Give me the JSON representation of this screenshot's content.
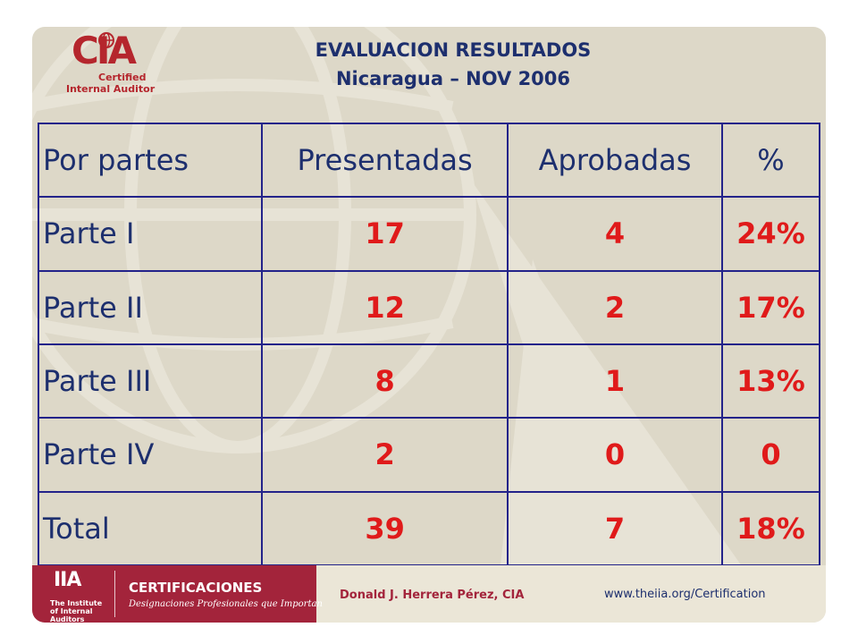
{
  "logo": {
    "brand": "CIA",
    "line1": "Certified",
    "line2": "Internal Auditor"
  },
  "title": {
    "line1": "EVALUACION RESULTADOS",
    "line2": "Nicaragua – NOV 2006"
  },
  "table": {
    "headers": [
      "Por partes",
      "Presentadas",
      "Aprobadas",
      "%"
    ],
    "rows": [
      {
        "label": "Parte I",
        "presentadas": "17",
        "aprobadas": "4",
        "pct": "24%"
      },
      {
        "label": "Parte II",
        "presentadas": "12",
        "aprobadas": "2",
        "pct": "17%"
      },
      {
        "label": "Parte III",
        "presentadas": "8",
        "aprobadas": "1",
        "pct": "13%"
      },
      {
        "label": "Parte IV",
        "presentadas": "2",
        "aprobadas": "0",
        "pct": "0"
      },
      {
        "label": "Total",
        "presentadas": "39",
        "aprobadas": "7",
        "pct": "18%"
      }
    ]
  },
  "footer": {
    "iia_letters": "IIA",
    "iia_name": "The Institute of Internal Auditors",
    "cert_title": "CERTIFICACIONES",
    "cert_subtitle": "Designaciones Profesionales que Importan",
    "author": "Donald J. Herrera Pérez, CIA",
    "url": "www.theiia.org/Certification"
  },
  "colors": {
    "accent": "#a3243b",
    "header_text": "#1d2f6e",
    "value_text": "#e01a1a",
    "table_border": "#23238a",
    "background": "#ddd8c8"
  }
}
